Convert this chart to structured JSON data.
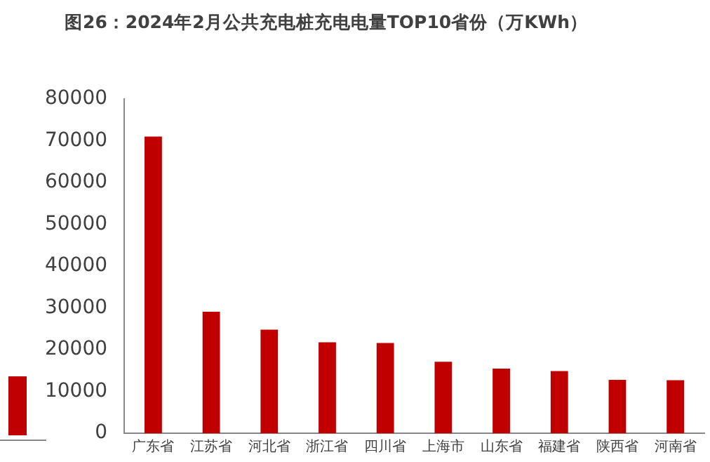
{
  "chart_data": {
    "type": "bar",
    "title": "图26：2024年2月公共充电桩充电电量TOP10省份（万KWh）",
    "categories": [
      "广东省",
      "江苏省",
      "河北省",
      "浙江省",
      "四川省",
      "上海市",
      "山东省",
      "福建省",
      "陕西省",
      "河南省"
    ],
    "values": [
      71000,
      29100,
      24800,
      21800,
      21600,
      17100,
      15500,
      14900,
      12800,
      12700
    ],
    "color": "#c00000",
    "ylim": [
      0,
      80000
    ],
    "yticks": [
      0,
      10000,
      20000,
      30000,
      40000,
      50000,
      60000,
      70000,
      80000
    ],
    "grid": false,
    "legend": false
  }
}
